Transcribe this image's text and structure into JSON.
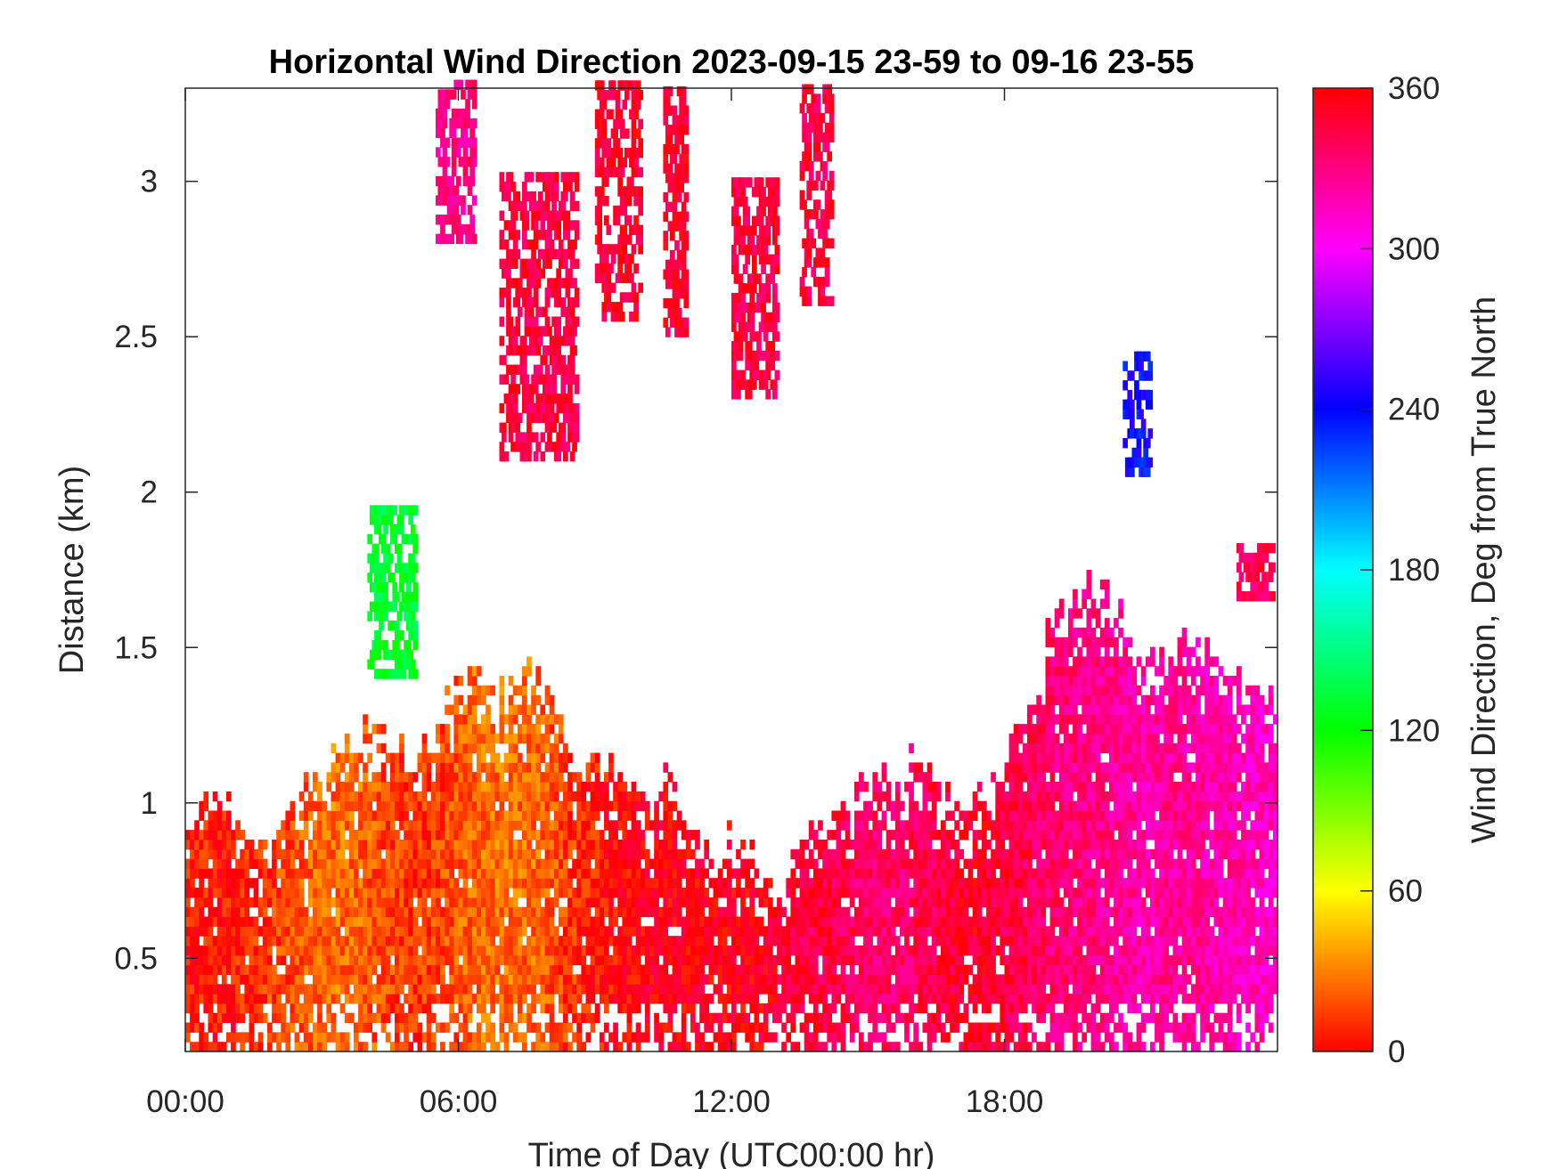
{
  "chart_data": {
    "type": "heatmap",
    "title": "Horizontal Wind Direction 2023-09-15 23-59 to 09-16 23-55",
    "xlabel": "Time of Day (UTC00:00 hr)",
    "ylabel": "Distance (km)",
    "xlim": [
      0,
      24
    ],
    "ylim": [
      0.2,
      3.3
    ],
    "x_ticks": [
      "00:00",
      "06:00",
      "12:00",
      "18:00"
    ],
    "x_tick_values": [
      0,
      6,
      12,
      18
    ],
    "y_ticks": [
      "0.5",
      "1",
      "1.5",
      "2",
      "2.5",
      "3"
    ],
    "y_tick_values": [
      0.5,
      1,
      1.5,
      2,
      2.5,
      3
    ],
    "colorbar": {
      "label": "Wind Direction, Deg from True North",
      "range": [
        0,
        360
      ],
      "ticks": [
        "0",
        "60",
        "120",
        "180",
        "240",
        "300",
        "360"
      ],
      "colormap": "hsv"
    },
    "boundary_layer_profile": {
      "columns": [
        "hour",
        "top_km",
        "dominant_direction_deg"
      ],
      "rows": [
        [
          0.0,
          0.87,
          5
        ],
        [
          0.5,
          1.06,
          5
        ],
        [
          1.0,
          0.93,
          5
        ],
        [
          1.5,
          0.9,
          10
        ],
        [
          2.0,
          0.9,
          15
        ],
        [
          2.5,
          1.06,
          20
        ],
        [
          3.0,
          1.12,
          25
        ],
        [
          3.5,
          1.17,
          25
        ],
        [
          4.0,
          1.25,
          20
        ],
        [
          4.5,
          1.2,
          15
        ],
        [
          5.0,
          1.1,
          10
        ],
        [
          5.5,
          1.25,
          15
        ],
        [
          6.0,
          1.38,
          20
        ],
        [
          6.5,
          1.38,
          25
        ],
        [
          7.0,
          1.32,
          25
        ],
        [
          7.5,
          1.42,
          25
        ],
        [
          8.0,
          1.32,
          20
        ],
        [
          8.5,
          1.12,
          10
        ],
        [
          9.0,
          1.09,
          5
        ],
        [
          9.5,
          1.09,
          0
        ],
        [
          10.0,
          1.03,
          355
        ],
        [
          10.5,
          1.06,
          355
        ],
        [
          11.0,
          0.93,
          355
        ],
        [
          11.5,
          0.83,
          355
        ],
        [
          12.0,
          0.87,
          355
        ],
        [
          12.5,
          0.8,
          355
        ],
        [
          13.0,
          0.67,
          350
        ],
        [
          13.5,
          0.9,
          345
        ],
        [
          14.0,
          0.9,
          345
        ],
        [
          14.5,
          0.99,
          340
        ],
        [
          15.0,
          1.06,
          335
        ],
        [
          15.5,
          1.09,
          335
        ],
        [
          16.0,
          1.12,
          340
        ],
        [
          16.5,
          1.03,
          345
        ],
        [
          17.0,
          0.99,
          350
        ],
        [
          17.5,
          0.99,
          350
        ],
        [
          18.0,
          1.12,
          345
        ],
        [
          18.5,
          1.32,
          340
        ],
        [
          19.0,
          1.58,
          335
        ],
        [
          19.5,
          1.67,
          330
        ],
        [
          20.0,
          1.7,
          330
        ],
        [
          20.5,
          1.58,
          325
        ],
        [
          21.0,
          1.45,
          320
        ],
        [
          21.5,
          1.48,
          325
        ],
        [
          22.0,
          1.51,
          325
        ],
        [
          22.5,
          1.45,
          320
        ],
        [
          23.0,
          1.42,
          320
        ],
        [
          23.5,
          1.32,
          315
        ],
        [
          23.95,
          1.32,
          315
        ]
      ]
    },
    "elevated_patches": {
      "columns": [
        "hour_start",
        "hour_end",
        "bottom_km",
        "top_km",
        "dominant_direction_deg"
      ],
      "rows": [
        [
          4.0,
          5.0,
          1.4,
          1.95,
          130
        ],
        [
          5.5,
          6.3,
          2.8,
          3.3,
          330
        ],
        [
          6.9,
          8.6,
          2.1,
          3.0,
          345
        ],
        [
          9.0,
          10.0,
          2.55,
          3.3,
          350
        ],
        [
          10.5,
          11.0,
          2.5,
          3.3,
          350
        ],
        [
          12.0,
          13.0,
          2.3,
          3.0,
          345
        ],
        [
          13.5,
          14.2,
          2.6,
          3.3,
          345
        ],
        [
          20.6,
          21.2,
          2.05,
          2.45,
          240
        ],
        [
          23.1,
          23.9,
          1.65,
          1.82,
          340
        ]
      ]
    }
  }
}
